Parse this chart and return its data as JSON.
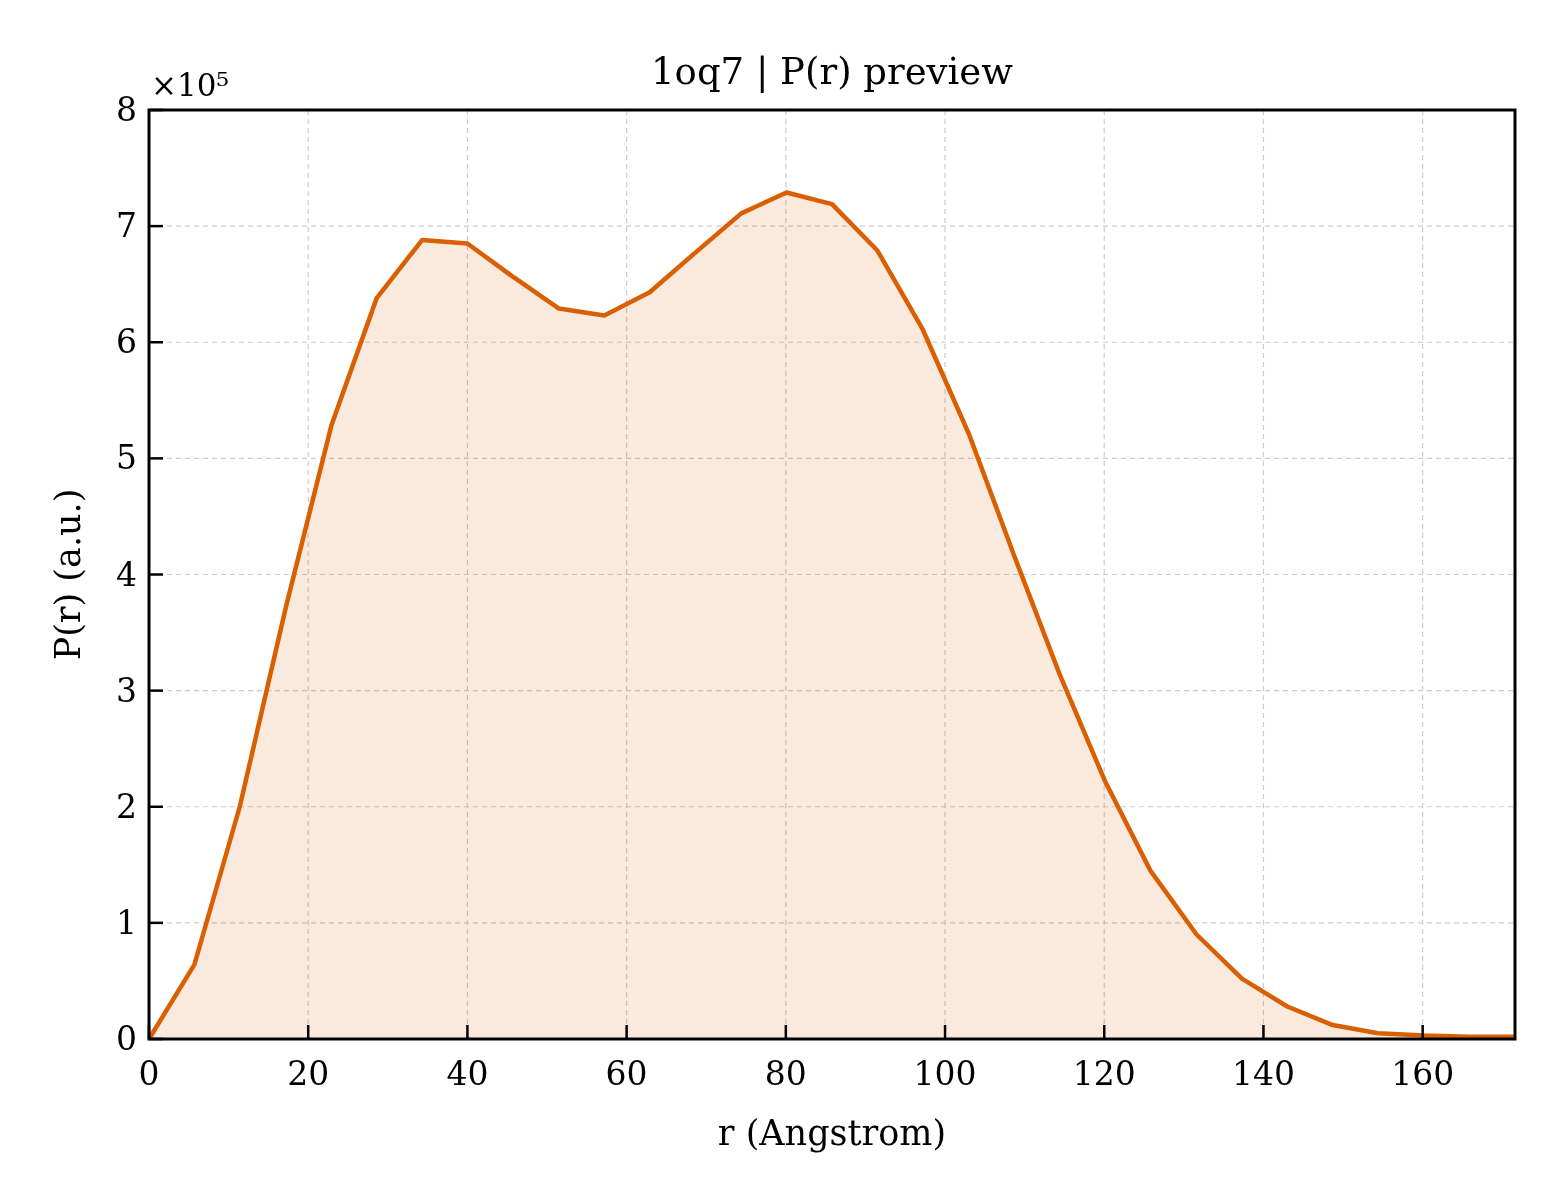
{
  "chart_data": {
    "type": "area",
    "title": "1oq7 | P(r) preview",
    "xlabel": "r (Angstrom)",
    "ylabel": "P(r) (a.u.)",
    "annotations": [
      "×10⁵"
    ],
    "x": [
      0,
      5.7,
      11.4,
      17.2,
      22.9,
      28.6,
      34.3,
      40.0,
      45.8,
      51.5,
      57.2,
      62.9,
      68.6,
      74.4,
      80.1,
      85.8,
      91.5,
      97.2,
      103.0,
      108.7,
      114.4,
      120.1,
      125.8,
      131.6,
      137.3,
      143.0,
      148.7,
      154.4,
      160.2,
      165.9,
      171.6
    ],
    "series": [
      {
        "color": "#d95f02",
        "values": [
          0,
          0.64,
          2.0,
          3.72,
          5.28,
          6.38,
          6.88,
          6.85,
          6.56,
          6.29,
          6.23,
          6.43,
          6.77,
          7.11,
          7.29,
          7.19,
          6.79,
          6.11,
          5.21,
          4.16,
          3.14,
          2.22,
          1.45,
          0.9,
          0.52,
          0.28,
          0.12,
          0.05,
          0.03,
          0.02,
          0.02
        ]
      }
    ],
    "xlim": [
      0,
      171.6
    ],
    "xticks": [
      0,
      20,
      40,
      60,
      80,
      100,
      120,
      140,
      160
    ],
    "ylim": [
      0,
      8
    ],
    "yticks": [
      0,
      1,
      2,
      3,
      4,
      5,
      6,
      7,
      8
    ],
    "grid": true,
    "line_style": "solid",
    "marker": "none"
  }
}
